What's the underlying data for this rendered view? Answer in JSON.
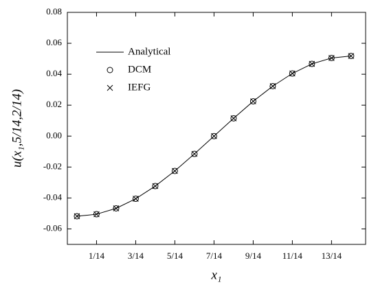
{
  "chart_data": {
    "type": "line",
    "x_label": "x₁",
    "y_label": "u(x₁,5/14,2/14)",
    "x": [
      0,
      0.0714,
      0.1429,
      0.2143,
      0.2857,
      0.3571,
      0.4286,
      0.5,
      0.5714,
      0.6429,
      0.7143,
      0.7857,
      0.8571,
      0.9286,
      1
    ],
    "series": [
      {
        "name": "Analytical",
        "color": "#000000",
        "marker": "none",
        "values": [
          -0.0518,
          -0.0505,
          -0.0467,
          -0.0405,
          -0.0323,
          -0.0225,
          -0.0115,
          0,
          0.0115,
          0.0225,
          0.0323,
          0.0405,
          0.0467,
          0.0505,
          0.0518
        ]
      },
      {
        "name": "DCM",
        "color": "#000000",
        "marker": "circle",
        "values": [
          -0.0518,
          -0.0505,
          -0.0467,
          -0.0405,
          -0.0323,
          -0.0225,
          -0.0115,
          0,
          0.0115,
          0.0225,
          0.0323,
          0.0405,
          0.0467,
          0.0505,
          0.0518
        ]
      },
      {
        "name": "IEFG",
        "color": "#000000",
        "marker": "cross",
        "values": [
          -0.0518,
          -0.0505,
          -0.0467,
          -0.0405,
          -0.0323,
          -0.0225,
          -0.0115,
          0,
          0.0115,
          0.0225,
          0.0323,
          0.0405,
          0.0467,
          0.0505,
          0.0518
        ]
      }
    ],
    "xlim": [
      -0.035,
      1.053
    ],
    "xticks": [
      {
        "value": 0.0714,
        "label": "1/14"
      },
      {
        "value": 0.2143,
        "label": "3/14"
      },
      {
        "value": 0.3571,
        "label": "5/14"
      },
      {
        "value": 0.5,
        "label": "7/14"
      },
      {
        "value": 0.6429,
        "label": "9/14"
      },
      {
        "value": 0.7857,
        "label": "11/14"
      },
      {
        "value": 0.9286,
        "label": "13/14"
      }
    ],
    "ylim": [
      -0.07,
      0.08
    ],
    "yticks": [
      -0.06,
      -0.04,
      -0.02,
      {
        "value": 0,
        "label": "0.00"
      },
      0.02,
      0.04,
      0.06,
      0.08
    ],
    "legend": "upper left",
    "grid": false
  }
}
